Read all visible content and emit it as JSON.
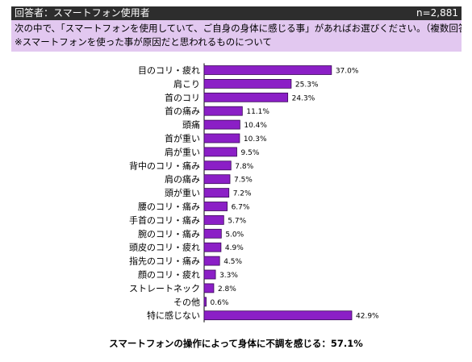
{
  "header": {
    "respondent_label": "回答者：スマートフォン使用者",
    "sample_size": "n=2,881"
  },
  "question": {
    "line1": "次の中で、「スマートフォンを使用していて、ご自身の身体に感じる事」があればお選びください。（複数回答）",
    "line2": "※スマートフォンを使った事が原因だと思われるものについて"
  },
  "colors": {
    "bar": "#8b1fc6",
    "bar_outline": "#3a0a57",
    "header_bg": "#2d2d2d",
    "question_bg": "#e2c8f0"
  },
  "chart_data": {
    "type": "bar",
    "orientation": "horizontal",
    "categories": [
      "目のコリ・疲れ",
      "肩こり",
      "首のコリ",
      "首の痛み",
      "頭痛",
      "首が重い",
      "肩が重い",
      "背中のコリ・痛み",
      "肩の痛み",
      "頭が重い",
      "腰のコリ・痛み",
      "手首のコリ・痛み",
      "腕のコリ・痛み",
      "頭皮のコリ・疲れ",
      "指先のコリ・痛み",
      "顔のコリ・疲れ",
      "ストレートネック",
      "その他",
      "特に感じない"
    ],
    "values": [
      37.0,
      25.3,
      24.3,
      11.1,
      10.4,
      10.3,
      9.5,
      7.8,
      7.5,
      7.2,
      6.7,
      5.7,
      5.0,
      4.9,
      4.5,
      3.3,
      2.8,
      0.6,
      42.9
    ],
    "value_labels": [
      "37.0%",
      "25.3%",
      "24.3%",
      "11.1%",
      "10.4%",
      "10.3%",
      "9.5%",
      "7.8%",
      "7.5%",
      "7.2%",
      "6.7%",
      "5.7%",
      "5.0%",
      "4.9%",
      "4.5%",
      "3.3%",
      "2.8%",
      "0.6%",
      "42.9%"
    ],
    "xlim": [
      0,
      42.9
    ],
    "grid": false,
    "legend": "none"
  },
  "footer": {
    "summary": "スマートフォンの操作によって身体に不調を感じる：57.1%"
  }
}
